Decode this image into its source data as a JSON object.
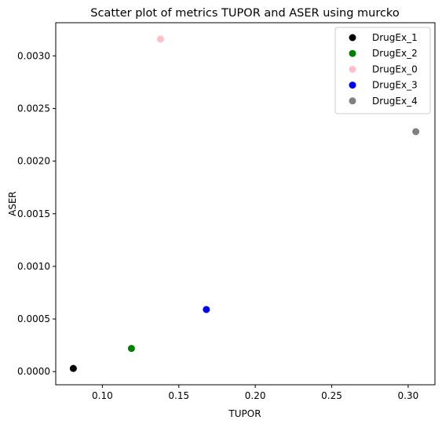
{
  "chart_data": {
    "type": "scatter",
    "title": "Scatter plot of metrics TUPOR and ASER using murcko",
    "xlabel": "TUPOR",
    "ylabel": "ASER",
    "xlim": [
      0.0695,
      0.3175
    ],
    "ylim": [
      -0.000125,
      0.003315
    ],
    "xticks": [
      "0.10",
      "0.15",
      "0.20",
      "0.25",
      "0.30"
    ],
    "yticks": [
      "0.0000",
      "0.0005",
      "0.0010",
      "0.0015",
      "0.0020",
      "0.0025",
      "0.0030"
    ],
    "grid": false,
    "legend_position": "top-right",
    "series": [
      {
        "name": "DrugEx_1",
        "color": "#000000",
        "x": 0.081,
        "y": 3e-05
      },
      {
        "name": "DrugEx_2",
        "color": "#008000",
        "x": 0.119,
        "y": 0.00022
      },
      {
        "name": "DrugEx_0",
        "color": "#ffc0cb",
        "x": 0.138,
        "y": 0.00316
      },
      {
        "name": "DrugEx_3",
        "color": "#0000ff",
        "x": 0.168,
        "y": 0.00059
      },
      {
        "name": "DrugEx_4",
        "color": "#808080",
        "x": 0.305,
        "y": 0.00228
      }
    ]
  }
}
